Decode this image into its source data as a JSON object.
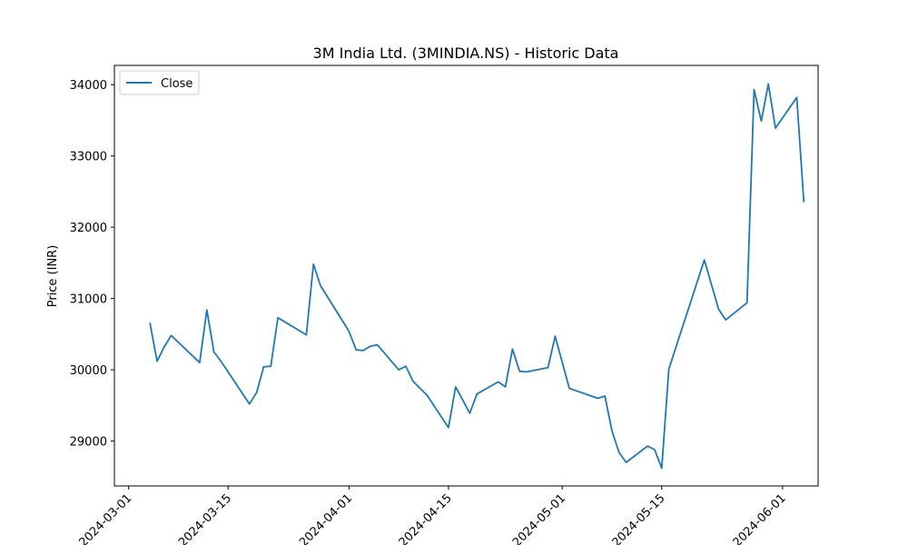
{
  "chart_data": {
    "type": "line",
    "title": "3M India Ltd. (3MINDIA.NS) - Historic Data",
    "xlabel": "",
    "ylabel": "Price (INR)",
    "xlim": [
      "2024-02-28",
      "2024-06-06"
    ],
    "ylim": [
      28370,
      34270
    ],
    "x_ticks": [
      "2024-03-01",
      "2024-03-15",
      "2024-04-01",
      "2024-04-15",
      "2024-05-01",
      "2024-05-15",
      "2024-06-01"
    ],
    "y_ticks": [
      29000,
      30000,
      31000,
      32000,
      33000,
      34000
    ],
    "grid": false,
    "legend": {
      "position": "top-left"
    },
    "series": [
      {
        "name": "Close",
        "color": "#1f77b4",
        "x": [
          "2024-03-04",
          "2024-03-05",
          "2024-03-06",
          "2024-03-07",
          "2024-03-11",
          "2024-03-12",
          "2024-03-13",
          "2024-03-14",
          "2024-03-18",
          "2024-03-19",
          "2024-03-20",
          "2024-03-21",
          "2024-03-22",
          "2024-03-26",
          "2024-03-27",
          "2024-03-28",
          "2024-04-01",
          "2024-04-02",
          "2024-04-03",
          "2024-04-04",
          "2024-04-05",
          "2024-04-08",
          "2024-04-09",
          "2024-04-10",
          "2024-04-12",
          "2024-04-15",
          "2024-04-16",
          "2024-04-18",
          "2024-04-19",
          "2024-04-22",
          "2024-04-23",
          "2024-04-24",
          "2024-04-25",
          "2024-04-26",
          "2024-04-29",
          "2024-04-30",
          "2024-05-02",
          "2024-05-06",
          "2024-05-07",
          "2024-05-08",
          "2024-05-09",
          "2024-05-10",
          "2024-05-13",
          "2024-05-14",
          "2024-05-15",
          "2024-05-16",
          "2024-05-21",
          "2024-05-23",
          "2024-05-24",
          "2024-05-27",
          "2024-05-28",
          "2024-05-29",
          "2024-05-30",
          "2024-05-31",
          "2024-06-03",
          "2024-06-04"
        ],
        "values": [
          30660,
          30120,
          30320,
          30480,
          30100,
          30840,
          30250,
          30120,
          29520,
          29680,
          30040,
          30050,
          30730,
          30490,
          31480,
          31180,
          30540,
          30280,
          30270,
          30330,
          30350,
          30000,
          30050,
          29840,
          29640,
          29190,
          29760,
          29390,
          29660,
          29830,
          29760,
          30290,
          29980,
          29970,
          30030,
          30470,
          29740,
          29600,
          29630,
          29140,
          28840,
          28700,
          28930,
          28880,
          28620,
          30010,
          31540,
          30850,
          30700,
          30940,
          33930,
          33490,
          34010,
          33390,
          33820,
          32350
        ]
      }
    ]
  }
}
